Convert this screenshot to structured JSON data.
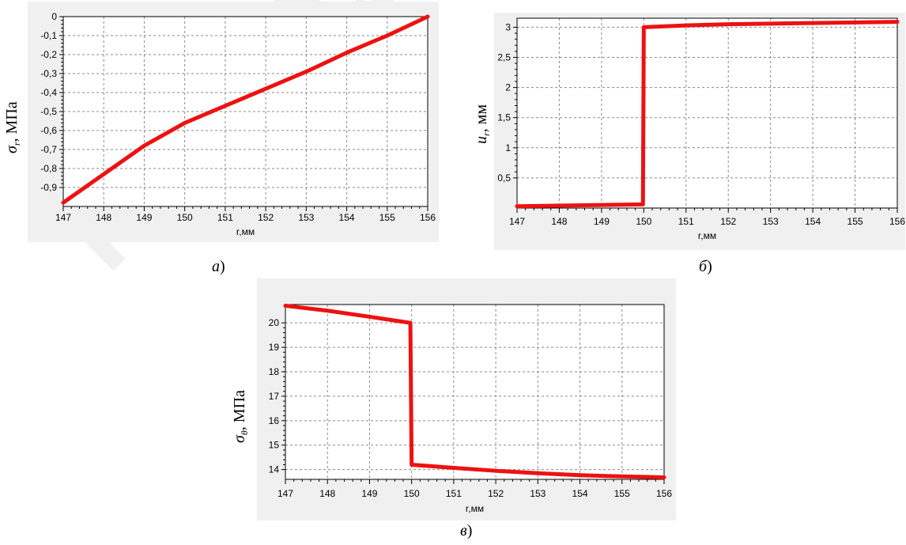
{
  "watermark": "РЕПОЗИТОРИЙ ГГУ",
  "colors": {
    "line": "#ee1111",
    "panel": "#f0f0f0",
    "plot": "#ffffff",
    "grid": "#8a8a8a"
  },
  "chart_data": [
    {
      "type": "line",
      "caption_letter": "а",
      "caption_paren": ")",
      "ylabel_symbol": "σ",
      "ylabel_sub": "r",
      "ylabel_unit": ", МПа",
      "xlabel": "r,мм",
      "xlim": [
        147,
        156
      ],
      "ylim": [
        -1.0,
        0.0
      ],
      "xticks": [
        147,
        148,
        149,
        150,
        151,
        152,
        153,
        154,
        155,
        156
      ],
      "xtick_labels": [
        "147",
        "148",
        "149",
        "150",
        "151",
        "152",
        "153",
        "154",
        "155",
        "156"
      ],
      "yticks": [
        0,
        -0.1,
        -0.2,
        -0.3,
        -0.4,
        -0.5,
        -0.6,
        -0.7,
        -0.8,
        -0.9
      ],
      "ytick_labels": [
        "0",
        "-0,1",
        "-0,2",
        "-0,3",
        "-0,4",
        "-0,5",
        "-0,6",
        "-0,7",
        "-0,8",
        "-0,9"
      ],
      "grid": true,
      "series": [
        {
          "x": [
            147,
            148,
            149,
            150,
            151,
            152,
            153,
            154,
            155,
            156
          ],
          "y": [
            -0.98,
            -0.83,
            -0.68,
            -0.56,
            -0.47,
            -0.38,
            -0.29,
            -0.19,
            -0.1,
            0.0
          ]
        }
      ]
    },
    {
      "type": "line",
      "caption_letter": "б",
      "caption_paren": ")",
      "ylabel_symbol": "u",
      "ylabel_sub": "r",
      "ylabel_unit": ", мм",
      "xlabel": "r,мм",
      "xlim": [
        147,
        156
      ],
      "ylim": [
        0,
        3.15
      ],
      "xticks": [
        147,
        148,
        149,
        150,
        151,
        152,
        153,
        154,
        155,
        156
      ],
      "xtick_labels": [
        "147",
        "148",
        "149",
        "150",
        "151",
        "152",
        "153",
        "154",
        "155",
        "156"
      ],
      "yticks": [
        0.5,
        1,
        1.5,
        2,
        2.5,
        3
      ],
      "ytick_labels": [
        "0,5",
        "1",
        "1,5",
        "2",
        "2,5",
        "3"
      ],
      "grid": true,
      "series": [
        {
          "x": [
            147,
            149.98,
            150.0,
            151,
            152,
            153,
            154,
            155,
            156
          ],
          "y": [
            0.03,
            0.06,
            3.0,
            3.03,
            3.05,
            3.06,
            3.07,
            3.08,
            3.09
          ]
        }
      ]
    },
    {
      "type": "line",
      "caption_letter": "в",
      "caption_paren": ")",
      "ylabel_symbol": "σ",
      "ylabel_sub": "θ",
      "ylabel_unit": ", МПа",
      "xlabel": "r,мм",
      "xlim": [
        147,
        156
      ],
      "ylim": [
        13.6,
        20.75
      ],
      "xticks": [
        147,
        148,
        149,
        150,
        151,
        152,
        153,
        154,
        155,
        156
      ],
      "xtick_labels": [
        "147",
        "148",
        "149",
        "150",
        "151",
        "152",
        "153",
        "154",
        "155",
        "156"
      ],
      "yticks": [
        14,
        15,
        16,
        17,
        18,
        19,
        20
      ],
      "ytick_labels": [
        "14",
        "15",
        "16",
        "17",
        "18",
        "19",
        "20"
      ],
      "grid": true,
      "series": [
        {
          "x": [
            147,
            148,
            149,
            149.97,
            150.0,
            151,
            152,
            153,
            154,
            155,
            156
          ],
          "y": [
            20.7,
            20.5,
            20.25,
            20.0,
            14.2,
            14.07,
            13.95,
            13.85,
            13.77,
            13.72,
            13.68
          ]
        }
      ]
    }
  ]
}
